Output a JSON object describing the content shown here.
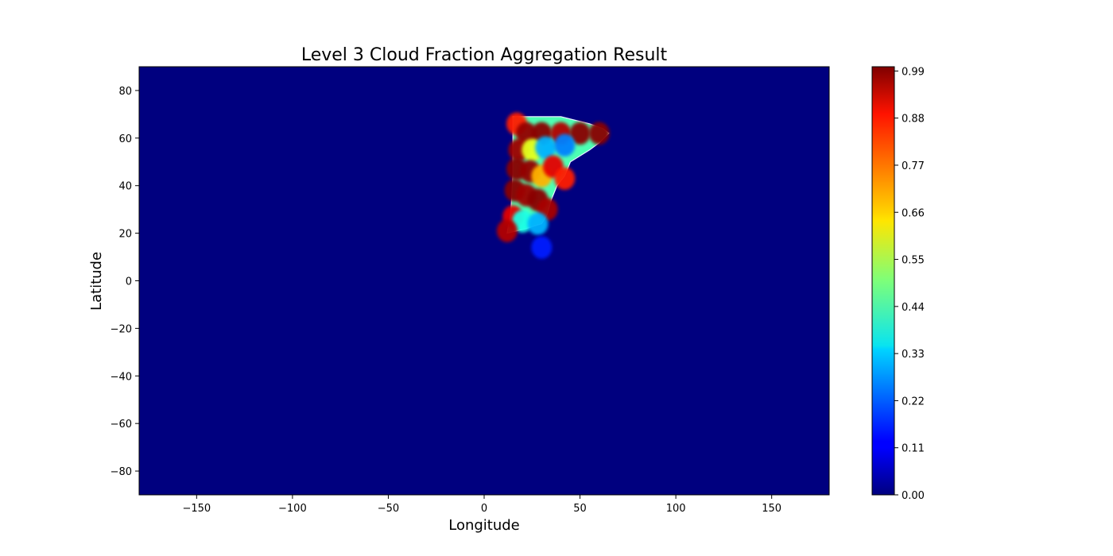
{
  "chart_data": {
    "type": "heatmap",
    "title": "Level 3 Cloud Fraction Aggregation Result",
    "xlabel": "Longitude",
    "ylabel": "Latitude",
    "xlim": [
      -180,
      180
    ],
    "ylim": [
      -90,
      90
    ],
    "xticks": [
      -150,
      -100,
      -50,
      0,
      50,
      100,
      150
    ],
    "yticks": [
      -80,
      -60,
      -40,
      -20,
      0,
      20,
      40,
      60,
      80
    ],
    "colormap": "jet",
    "background_value": 0.0,
    "colorbar": {
      "vmin": 0.0,
      "vmax": 1.0,
      "ticks": [
        "0.00",
        "0.11",
        "0.22",
        "0.33",
        "0.44",
        "0.55",
        "0.66",
        "0.77",
        "0.88",
        "0.99"
      ]
    },
    "data_region": {
      "lon_range": [
        11,
        65
      ],
      "lat_range": [
        12,
        69
      ],
      "cells": [
        {
          "lon": 17,
          "lat": 66,
          "value": 0.85
        },
        {
          "lon": 22,
          "lat": 62,
          "value": 0.98
        },
        {
          "lon": 30,
          "lat": 62,
          "value": 0.99
        },
        {
          "lon": 40,
          "lat": 62,
          "value": 0.95
        },
        {
          "lon": 50,
          "lat": 62,
          "value": 0.99
        },
        {
          "lon": 60,
          "lat": 62,
          "value": 0.99
        },
        {
          "lon": 18,
          "lat": 55,
          "value": 0.97
        },
        {
          "lon": 25,
          "lat": 55,
          "value": 0.6
        },
        {
          "lon": 32,
          "lat": 56,
          "value": 0.3
        },
        {
          "lon": 42,
          "lat": 57,
          "value": 0.25
        },
        {
          "lon": 17,
          "lat": 47,
          "value": 0.99
        },
        {
          "lon": 24,
          "lat": 46,
          "value": 0.98
        },
        {
          "lon": 30,
          "lat": 44,
          "value": 0.7
        },
        {
          "lon": 36,
          "lat": 48,
          "value": 0.9
        },
        {
          "lon": 42,
          "lat": 43,
          "value": 0.85
        },
        {
          "lon": 16,
          "lat": 38,
          "value": 0.99
        },
        {
          "lon": 22,
          "lat": 36,
          "value": 0.97
        },
        {
          "lon": 28,
          "lat": 34,
          "value": 0.99
        },
        {
          "lon": 33,
          "lat": 30,
          "value": 0.96
        },
        {
          "lon": 15,
          "lat": 27,
          "value": 0.9
        },
        {
          "lon": 20,
          "lat": 25,
          "value": 0.4
        },
        {
          "lon": 28,
          "lat": 24,
          "value": 0.3
        },
        {
          "lon": 12,
          "lat": 21,
          "value": 0.95
        },
        {
          "lon": 30,
          "lat": 14,
          "value": 0.15
        }
      ]
    }
  }
}
